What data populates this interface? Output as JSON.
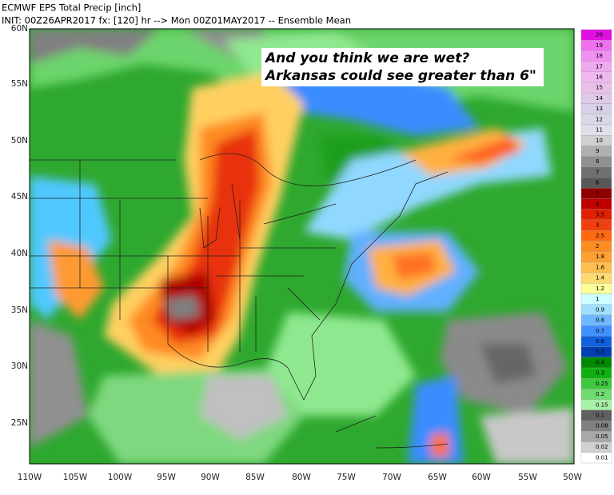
{
  "header": {
    "title": "ECMWF EPS Total Precip [inch]",
    "subtitle": "INIT: 00Z26APR2017 fx: [120] hr --> Mon 00Z01MAY2017 -- Ensemble Mean"
  },
  "annotation": {
    "lines": [
      "And you think we are wet?",
      "Arkansas could see greater than 6\""
    ]
  },
  "map": {
    "lat_labels": [
      "60N",
      "55N",
      "50N",
      "45N",
      "40N",
      "35N",
      "30N",
      "25N"
    ],
    "lon_labels": [
      "110W",
      "105W",
      "100W",
      "95W",
      "90W",
      "85W",
      "80W",
      "75W",
      "70W",
      "65W",
      "60W",
      "55W",
      "50W"
    ]
  },
  "colorbar": {
    "labels": [
      "20",
      "19",
      "18",
      "17",
      "16",
      "15",
      "14",
      "13",
      "12",
      "11",
      "10",
      "9",
      "8",
      "7",
      "6",
      "5",
      "4",
      "3.5",
      "3",
      "2.5",
      "2",
      "1.8",
      "1.6",
      "1.4",
      "1.2",
      "1",
      "0.9",
      "0.8",
      "0.7",
      "0.6",
      "0.5",
      "0.4",
      "0.3",
      "0.25",
      "0.2",
      "0.15",
      "0.1",
      "0.08",
      "0.05",
      "0.02",
      "0.01"
    ],
    "colors": [
      "#e010e0",
      "#f070f0",
      "#f090f0",
      "#f0a8f0",
      "#f0b8f0",
      "#e8c0e8",
      "#e0c8e8",
      "#d8d0e8",
      "#d8d8e8",
      "#e0e0ec",
      "#d0d0d0",
      "#b0b0b0",
      "#909090",
      "#707070",
      "#585858",
      "#900000",
      "#c00000",
      "#e02000",
      "#f04010",
      "#ff6a10",
      "#ff8c20",
      "#ffa030",
      "#ffbe50",
      "#ffda70",
      "#ffff99",
      "#ccffff",
      "#a0e0ff",
      "#70b8ff",
      "#4090ff",
      "#1060e0",
      "#0040b0",
      "#008800",
      "#10b010",
      "#40c840",
      "#70dc70",
      "#a8f0a8",
      "#606060",
      "#808080",
      "#a8a8a8",
      "#d0d0d0",
      "#ffffff"
    ]
  }
}
